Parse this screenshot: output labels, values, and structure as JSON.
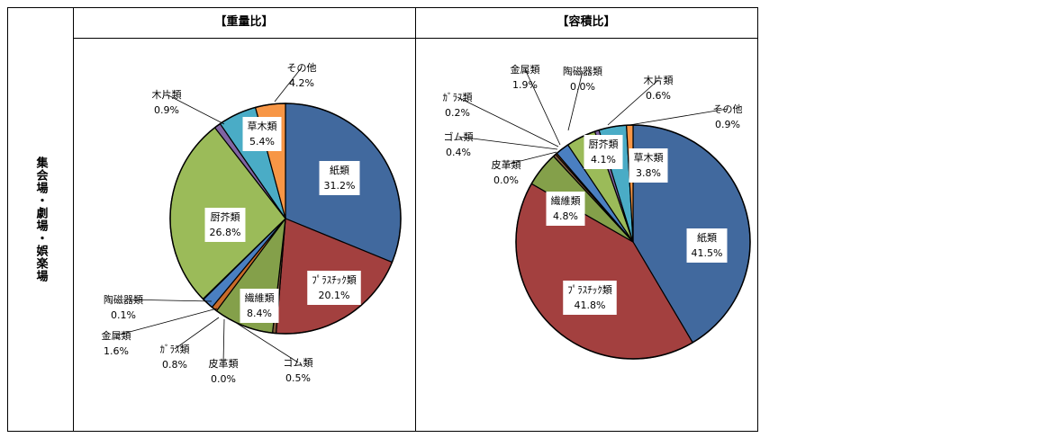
{
  "row_label": "集会場・劇場・娯楽場",
  "chart_data": [
    {
      "type": "pie",
      "title": "【重量比】",
      "slices": [
        {
          "label": "紙類",
          "pct_label": "31.2%",
          "value": 31.2,
          "color": "#41699e"
        },
        {
          "label": "ﾌﾟﾗｽﾁｯｸ類",
          "pct_label": "20.1%",
          "value": 20.1,
          "color": "#a3403f"
        },
        {
          "label": "ゴム類",
          "pct_label": "0.5%",
          "value": 0.5,
          "color": "#7d5a3c"
        },
        {
          "label": "繊維類",
          "pct_label": "8.4%",
          "value": 8.4,
          "color": "#84a04a"
        },
        {
          "label": "皮革類",
          "pct_label": "0.0%",
          "value": 0.0,
          "color": "#555555"
        },
        {
          "label": "ｶﾞﾗｽ類",
          "pct_label": "0.8%",
          "value": 0.8,
          "color": "#c96b2a"
        },
        {
          "label": "金属類",
          "pct_label": "1.6%",
          "value": 1.6,
          "color": "#4a7fc1"
        },
        {
          "label": "陶磁器類",
          "pct_label": "0.1%",
          "value": 0.1,
          "color": "#a04040"
        },
        {
          "label": "厨芥類",
          "pct_label": "26.8%",
          "value": 26.8,
          "color": "#9bbb59"
        },
        {
          "label": "木片類",
          "pct_label": "0.9%",
          "value": 0.9,
          "color": "#8064a2"
        },
        {
          "label": "草木類",
          "pct_label": "5.4%",
          "value": 5.4,
          "color": "#4aacc6"
        },
        {
          "label": "その他",
          "pct_label": "4.2%",
          "value": 4.2,
          "color": "#f79646"
        }
      ]
    },
    {
      "type": "pie",
      "title": "【容積比】",
      "slices": [
        {
          "label": "紙類",
          "pct_label": "41.5%",
          "value": 41.5,
          "color": "#41699e"
        },
        {
          "label": "ﾌﾟﾗｽﾁｯｸ類",
          "pct_label": "41.8%",
          "value": 41.8,
          "color": "#a3403f"
        },
        {
          "label": "繊維類",
          "pct_label": "4.8%",
          "value": 4.8,
          "color": "#84a04a"
        },
        {
          "label": "皮革類",
          "pct_label": "0.0%",
          "value": 0.0,
          "color": "#555555"
        },
        {
          "label": "ゴム類",
          "pct_label": "0.4%",
          "value": 0.4,
          "color": "#7d5a3c"
        },
        {
          "label": "ｶﾞﾗｽ類",
          "pct_label": "0.2%",
          "value": 0.2,
          "color": "#c96b2a"
        },
        {
          "label": "金属類",
          "pct_label": "1.9%",
          "value": 1.9,
          "color": "#4a7fc1"
        },
        {
          "label": "陶磁器類",
          "pct_label": "0.0%",
          "value": 0.0,
          "color": "#a04040"
        },
        {
          "label": "厨芥類",
          "pct_label": "4.1%",
          "value": 4.1,
          "color": "#9bbb59"
        },
        {
          "label": "木片類",
          "pct_label": "0.6%",
          "value": 0.6,
          "color": "#8064a2"
        },
        {
          "label": "草木類",
          "pct_label": "3.8%",
          "value": 3.8,
          "color": "#4aacc6"
        },
        {
          "label": "その他",
          "pct_label": "0.9%",
          "value": 0.9,
          "color": "#f79646"
        }
      ]
    }
  ]
}
